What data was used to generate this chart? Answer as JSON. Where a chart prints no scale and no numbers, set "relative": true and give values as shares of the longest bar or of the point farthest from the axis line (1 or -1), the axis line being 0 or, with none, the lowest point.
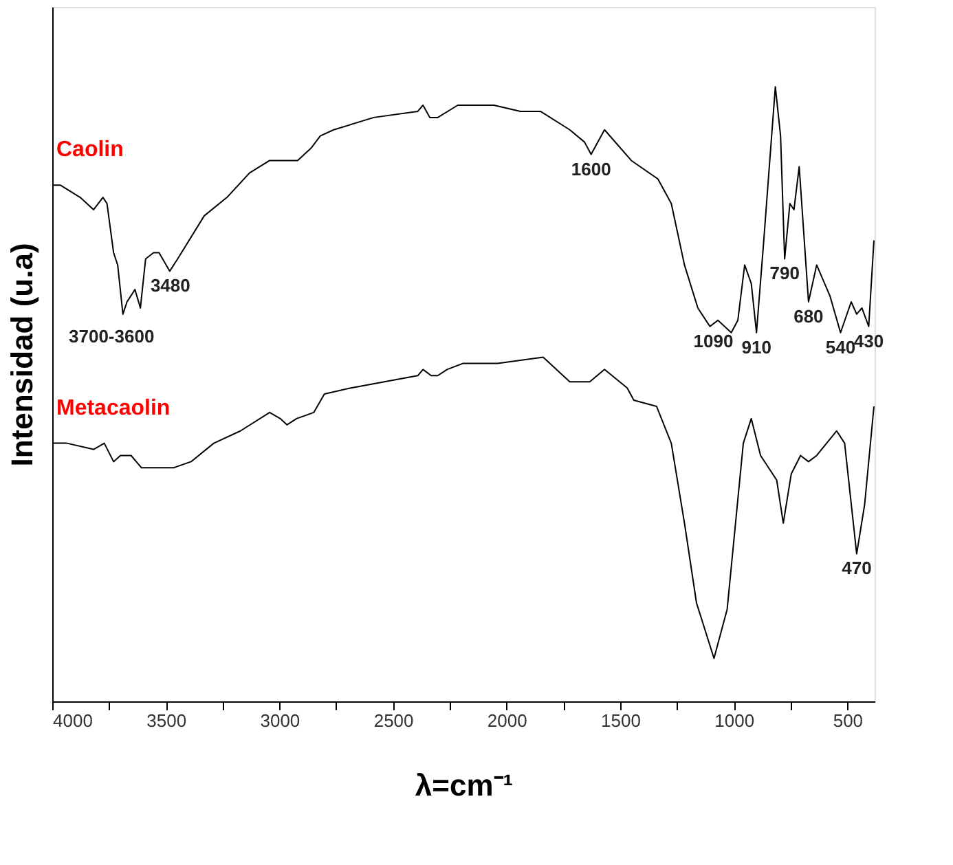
{
  "chart_data": {
    "type": "line",
    "relative": true,
    "xlabel": "λ=cm⁻¹",
    "ylabel": "Intensidad (u.a)",
    "xlim": [
      4000,
      380
    ],
    "xticks": [
      4000,
      {
        "value": 3750,
        "label": null
      },
      3500,
      {
        "value": 3250,
        "label": null
      },
      3000,
      {
        "value": 2750,
        "label": null
      },
      2500,
      {
        "value": 2250,
        "label": null
      },
      2000,
      {
        "value": 1750,
        "label": null
      },
      1500,
      {
        "value": 1250,
        "label": null
      },
      1000,
      {
        "value": 750,
        "label": null
      },
      500
    ],
    "grid": false,
    "legend": false,
    "marker": "none",
    "line_style": "solid",
    "series": [
      {
        "name": "Caolin",
        "color": "#000000",
        "x": [
          3994,
          3965,
          3877,
          3818,
          3777,
          3759,
          3730,
          3712,
          3689,
          3671,
          3636,
          3612,
          3589,
          3554,
          3530,
          3483,
          3448,
          3331,
          3231,
          3131,
          3043,
          2920,
          2861,
          2820,
          2761,
          2585,
          2391,
          2368,
          2338,
          2303,
          2215,
          2056,
          1939,
          1851,
          1722,
          1657,
          1628,
          1569,
          1451,
          1334,
          1275,
          1217,
          1158,
          1105,
          1070,
          1011,
          982,
          952,
          923,
          900,
          870,
          817,
          794,
          776,
          753,
          735,
          712,
          671,
          635,
          577,
          530,
          483,
          459,
          436,
          406,
          383
        ],
        "values": [
          0.84,
          0.84,
          0.82,
          0.8,
          0.82,
          0.81,
          0.73,
          0.71,
          0.63,
          0.65,
          0.67,
          0.64,
          0.72,
          0.73,
          0.73,
          0.7,
          0.72,
          0.79,
          0.82,
          0.86,
          0.88,
          0.88,
          0.9,
          0.92,
          0.93,
          0.95,
          0.96,
          0.97,
          0.95,
          0.95,
          0.97,
          0.97,
          0.96,
          0.96,
          0.93,
          0.91,
          0.89,
          0.93,
          0.88,
          0.85,
          0.81,
          0.71,
          0.64,
          0.61,
          0.62,
          0.6,
          0.62,
          0.71,
          0.68,
          0.6,
          0.74,
          1.0,
          0.92,
          0.72,
          0.81,
          0.8,
          0.87,
          0.65,
          0.71,
          0.66,
          0.6,
          0.65,
          0.63,
          0.64,
          0.61,
          0.75
        ]
      },
      {
        "name": "Metacaolin",
        "color": "#000000",
        "x": [
          3994,
          3935,
          3818,
          3771,
          3730,
          3700,
          3653,
          3607,
          3542,
          3466,
          3389,
          3289,
          3172,
          3043,
          2996,
          2967,
          2925,
          2849,
          2802,
          2685,
          2391,
          2368,
          2332,
          2303,
          2262,
          2191,
          2097,
          2039,
          1839,
          1722,
          1634,
          1569,
          1469,
          1440,
          1340,
          1275,
          1217,
          1164,
          1087,
          1029,
          958,
          923,
          882,
          811,
          782,
          747,
          706,
          671,
          635,
          547,
          512,
          459,
          424,
          383
        ],
        "values": [
          0.42,
          0.42,
          0.41,
          0.42,
          0.39,
          0.4,
          0.4,
          0.38,
          0.38,
          0.38,
          0.39,
          0.42,
          0.44,
          0.47,
          0.46,
          0.45,
          0.46,
          0.47,
          0.5,
          0.51,
          0.53,
          0.54,
          0.53,
          0.53,
          0.54,
          0.55,
          0.55,
          0.55,
          0.56,
          0.52,
          0.52,
          0.54,
          0.51,
          0.49,
          0.48,
          0.42,
          0.29,
          0.16,
          0.07,
          0.15,
          0.42,
          0.46,
          0.4,
          0.36,
          0.29,
          0.37,
          0.4,
          0.39,
          0.4,
          0.44,
          0.42,
          0.24,
          0.32,
          0.48
        ]
      }
    ],
    "annotations": [
      "3700-3600",
      {
        "text": "3480",
        "x": 3480,
        "y": 0.7
      },
      {
        "text": "1600",
        "x": 1628,
        "y": 0.89
      },
      {
        "text": "1090",
        "x": 1090,
        "y": 0.61
      },
      {
        "text": "910",
        "x": 900,
        "y": 0.6
      },
      {
        "text": "790",
        "x": 776,
        "y": 0.72
      },
      {
        "text": "680",
        "x": 671,
        "y": 0.65
      },
      {
        "text": "540",
        "x": 530,
        "y": 0.6
      },
      {
        "text": "430",
        "x": 406,
        "y": 0.61
      },
      {
        "text": "470",
        "x": 459,
        "y": 0.24
      }
    ]
  }
}
